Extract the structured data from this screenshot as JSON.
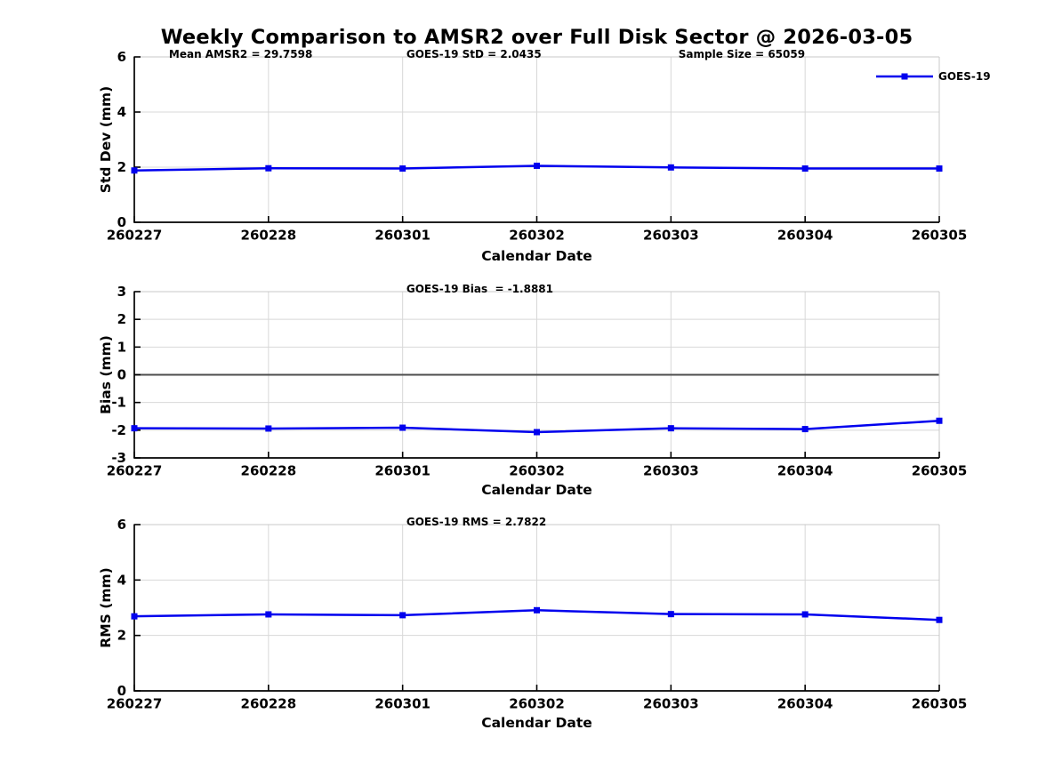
{
  "title": "Weekly Comparison to AMSR2 over Full Disk Sector @ 2026-03-05",
  "xlabel": "Calendar Date",
  "legend": {
    "label": "GOES-19"
  },
  "colors": {
    "series": "#0000ee",
    "grid": "#d8d8d8",
    "box": "#c8c8c8",
    "axis": "#000000",
    "zero_line": "#4d4d4d",
    "text": "#000000"
  },
  "chart_data": [
    {
      "type": "line",
      "name": "std-dev",
      "ylabel": "Std Dev (mm)",
      "xlabel": "Calendar Date",
      "categories": [
        "260227",
        "260228",
        "260301",
        "260302",
        "260303",
        "260304",
        "260305"
      ],
      "series": [
        {
          "name": "GOES-19",
          "values": [
            1.88,
            1.96,
            1.95,
            2.05,
            1.99,
            1.95,
            1.95
          ]
        }
      ],
      "ylim": [
        0,
        6
      ],
      "yticks": [
        0,
        2,
        4,
        6
      ],
      "grid": true,
      "legend_position": "top-right-outside",
      "annotations": [
        "Mean AMSR2 = 29.7598",
        "GOES-19 StD = 2.0435",
        "Sample Size = 65059"
      ]
    },
    {
      "type": "line",
      "name": "bias",
      "ylabel": "Bias (mm)",
      "xlabel": "Calendar Date",
      "categories": [
        "260227",
        "260228",
        "260301",
        "260302",
        "260303",
        "260304",
        "260305"
      ],
      "series": [
        {
          "name": "GOES-19",
          "values": [
            -1.93,
            -1.94,
            -1.91,
            -2.07,
            -1.93,
            -1.96,
            -1.66
          ]
        }
      ],
      "ylim": [
        -3,
        3
      ],
      "yticks": [
        -3,
        -2,
        -1,
        0,
        1,
        2,
        3
      ],
      "zero_line": true,
      "grid": true,
      "annotations": [
        "GOES-19 Bias  = -1.8881"
      ]
    },
    {
      "type": "line",
      "name": "rms",
      "ylabel": "RMS (mm)",
      "xlabel": "Calendar Date",
      "categories": [
        "260227",
        "260228",
        "260301",
        "260302",
        "260303",
        "260304",
        "260305"
      ],
      "series": [
        {
          "name": "GOES-19",
          "values": [
            2.69,
            2.76,
            2.73,
            2.91,
            2.77,
            2.76,
            2.56
          ]
        }
      ],
      "ylim": [
        0,
        6
      ],
      "yticks": [
        0,
        2,
        4,
        6
      ],
      "grid": true,
      "annotations": [
        "GOES-19 RMS = 2.7822"
      ]
    }
  ]
}
